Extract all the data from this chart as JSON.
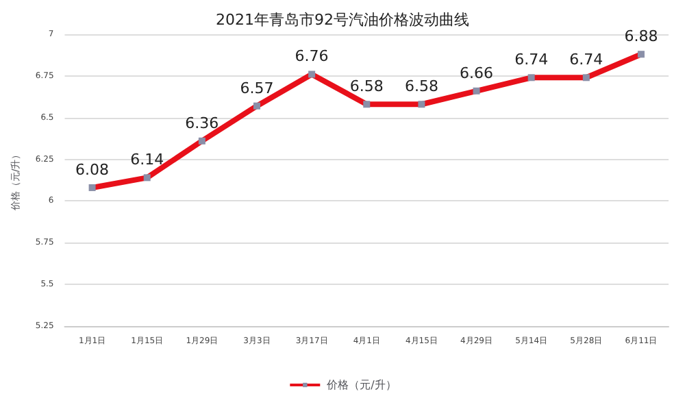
{
  "chart_data": {
    "type": "line",
    "title": "2021年青岛市92号汽油价格波动曲线",
    "ylabel": "价格（元/升）",
    "categories": [
      "1月1日",
      "1月15日",
      "1月29日",
      "3月3日",
      "3月17日",
      "4月1日",
      "4月15日",
      "4月29日",
      "5月14日",
      "5月28日",
      "6月11日"
    ],
    "series": [
      {
        "name": "价格（元/升）",
        "color": "#e8101a",
        "values": [
          6.08,
          6.14,
          6.36,
          6.57,
          6.76,
          6.58,
          6.58,
          6.66,
          6.74,
          6.74,
          6.88
        ]
      }
    ],
    "ylim": [
      5.25,
      7
    ],
    "yticks": [
      5.25,
      5.5,
      5.75,
      6,
      6.25,
      6.5,
      6.75,
      7
    ],
    "grid": "y",
    "legend": "bottom",
    "marker": "square",
    "line_style": "solid",
    "data_labels": true
  }
}
